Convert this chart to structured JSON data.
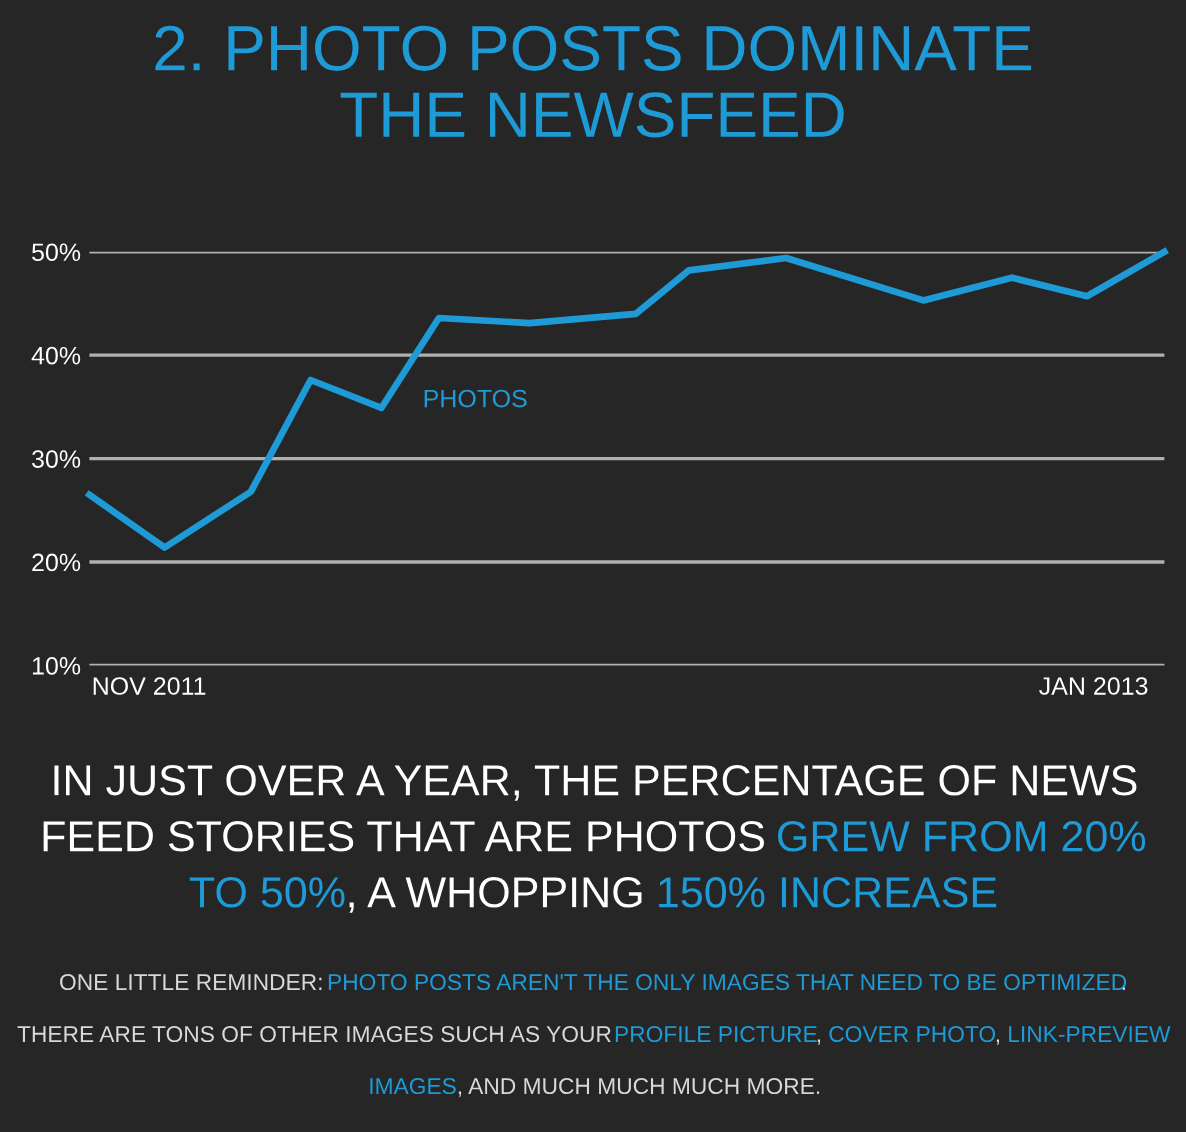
{
  "chart_data": {
    "type": "line",
    "title": "2. PHOTO POSTS DOMINATE\nTHE NEWSFEED",
    "x": [
      "2011-10-05",
      "2011-11-08",
      "2011-12-17",
      "2012-01-13",
      "2012-02-14",
      "2012-03-11",
      "2012-04-21",
      "2012-06-08",
      "2012-07-02",
      "2012-08-15",
      "2012-10-16",
      "2012-11-25",
      "2012-12-29",
      "2013-02-02"
    ],
    "xlim": [
      "2011-10-05",
      "2013-02-02"
    ],
    "xticks": [
      {
        "value": "2011-11-01",
        "label": "NOV 2011"
      },
      {
        "value": "2013-01-01",
        "label": "JAN 2013"
      }
    ],
    "series": [
      {
        "name": "PHOTOS",
        "color": "#1e9ad6",
        "values": [
          26.5,
          21.4,
          26.8,
          37.6,
          34.9,
          43.6,
          43.1,
          44.0,
          48.2,
          49.4,
          45.3,
          47.5,
          45.7,
          50
        ]
      }
    ],
    "ylim": [
      10,
      50
    ],
    "yticks": [
      {
        "value": 10,
        "label": "10%"
      },
      {
        "value": 20,
        "label": "20%"
      },
      {
        "value": 30,
        "label": "30%"
      },
      {
        "value": 40,
        "label": "40%"
      },
      {
        "value": 50,
        "label": "50%"
      }
    ],
    "grid": "y",
    "marker": "none",
    "line_style": "solid",
    "annotations": [
      "IN JUST OVER A YEAR, THE PERCENTAGE OF NEWS",
      "FEED STORIES THAT ARE PHOTOS ",
      "GREW FROM 20%",
      "TO 50%",
      ", A WHOPPING ",
      "150% INCREASE",
      "ONE LITTLE REMINDER: ",
      "PHOTO POSTS AREN'T THE ONLY IMAGES THAT NEED TO BE OPTIMIZED",
      ".",
      "THERE ARE TONS OF OTHER IMAGES SUCH AS YOUR ",
      "PROFILE PICTURE",
      ", ",
      "COVER PHOTO",
      ", ",
      "LINK-PREVIEW",
      "IMAGES",
      ", AND MUCH MUCH MUCH MORE."
    ]
  }
}
